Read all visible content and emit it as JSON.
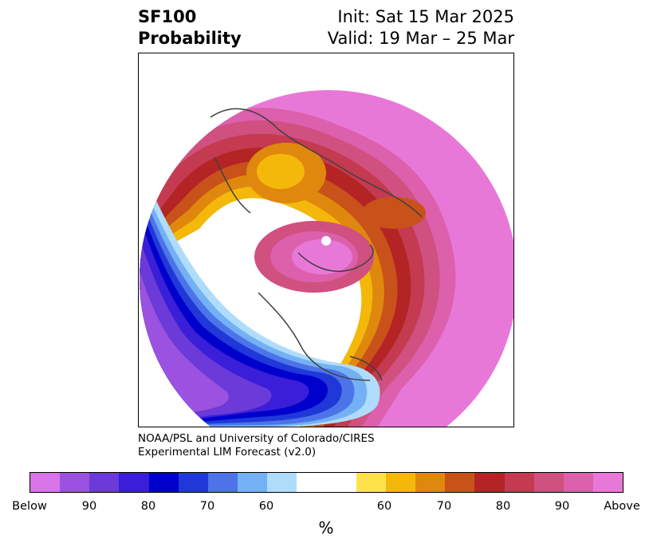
{
  "title": {
    "line1": "SF100",
    "line2": "Probability",
    "init": "Init: Sat 15 Mar 2025",
    "valid": "Valid: 19 Mar – 25 Mar"
  },
  "credit": {
    "line1": "NOAA/PSL and University of Colorado/CIRES",
    "line2": "Experimental LIM Forecast (v2.0)"
  },
  "colorbar": {
    "colors": [
      "#d874e8",
      "#9b52e0",
      "#6b3ad8",
      "#3a1ed8",
      "#0000cc",
      "#2038d8",
      "#4c74e8",
      "#74b0f4",
      "#b0dcfc",
      "#ffffff",
      "#ffffff",
      "#ffe24a",
      "#f4b80a",
      "#e0880e",
      "#c8521a",
      "#b42424",
      "#c43a50",
      "#d05080",
      "#dc60ac",
      "#e878d8"
    ],
    "tick_labels": [
      "Below",
      "90",
      "80",
      "70",
      "60",
      "60",
      "70",
      "80",
      "90",
      "Above"
    ],
    "unit": "%"
  },
  "map": {
    "projection": "north polar stereographic",
    "features": [
      "below-normal anomaly over North America and North Pacific",
      "above-normal anomaly over Eurasia and Arctic",
      "above-normal anomaly over Atlantic"
    ]
  }
}
